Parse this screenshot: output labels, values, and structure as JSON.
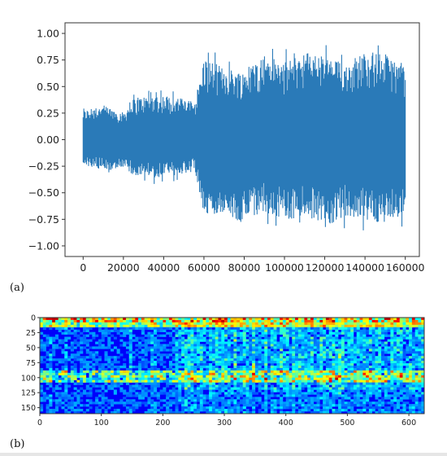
{
  "captions": {
    "a": "(a)",
    "b": "(b)"
  },
  "chart_data": [
    {
      "type": "line",
      "title": "",
      "xlabel": "",
      "ylabel": "",
      "xlim": [
        -9000,
        167000
      ],
      "ylim": [
        -1.1,
        1.1
      ],
      "xticks": [
        0,
        20000,
        40000,
        60000,
        80000,
        100000,
        120000,
        140000,
        160000
      ],
      "yticks": [
        1.0,
        0.75,
        0.5,
        0.25,
        0.0,
        -0.25,
        -0.5,
        -0.75,
        -1.0
      ],
      "xtick_labels": [
        "0",
        "20000",
        "40000",
        "60000",
        "80000",
        "100000",
        "120000",
        "140000",
        "160000"
      ],
      "ytick_labels": [
        "1.00",
        "0.75",
        "0.50",
        "0.25",
        "0.00",
        "−0.25",
        "−0.50",
        "−0.75",
        "−1.00"
      ],
      "grid": false,
      "color": "#2a7ab8",
      "series": [
        {
          "x": [
            0,
            10000,
            20000,
            25000,
            35000,
            45000,
            55000,
            57000,
            60000,
            70000,
            80000,
            90000,
            100000,
            110000,
            120000,
            130000,
            140000,
            150000,
            160000
          ],
          "max": [
            0.32,
            0.38,
            0.3,
            0.45,
            0.5,
            0.48,
            0.42,
            0.55,
            0.9,
            0.8,
            0.75,
            0.95,
            0.85,
            0.98,
            0.92,
            0.85,
            0.98,
            0.95,
            0.8
          ],
          "min": [
            -0.28,
            -0.35,
            -0.3,
            -0.4,
            -0.42,
            -0.4,
            -0.35,
            -0.5,
            -0.85,
            -0.8,
            -0.95,
            -0.8,
            -0.9,
            -0.85,
            -0.98,
            -0.85,
            -0.9,
            -0.92,
            -0.85
          ]
        }
      ]
    },
    {
      "type": "heatmap",
      "title": "",
      "xlabel": "",
      "ylabel": "",
      "xlim": [
        0,
        625
      ],
      "ylim": [
        160,
        0
      ],
      "xticks": [
        0,
        100,
        200,
        300,
        400,
        500,
        600
      ],
      "yticks": [
        0,
        25,
        50,
        75,
        100,
        125,
        150
      ],
      "xtick_labels": [
        "0",
        "100",
        "200",
        "300",
        "400",
        "500",
        "600"
      ],
      "ytick_labels": [
        "0",
        "25",
        "50",
        "75",
        "100",
        "125",
        "150"
      ],
      "colormap": "jet",
      "hot_bands": [
        {
          "row_from": 0,
          "row_to": 12,
          "intensity": 0.7
        },
        {
          "row_from": 85,
          "row_to": 105,
          "intensity": 0.45
        }
      ],
      "loud_columns": [
        {
          "col_from": 222,
          "col_to": 625,
          "intensity": 0.35
        }
      ]
    }
  ]
}
